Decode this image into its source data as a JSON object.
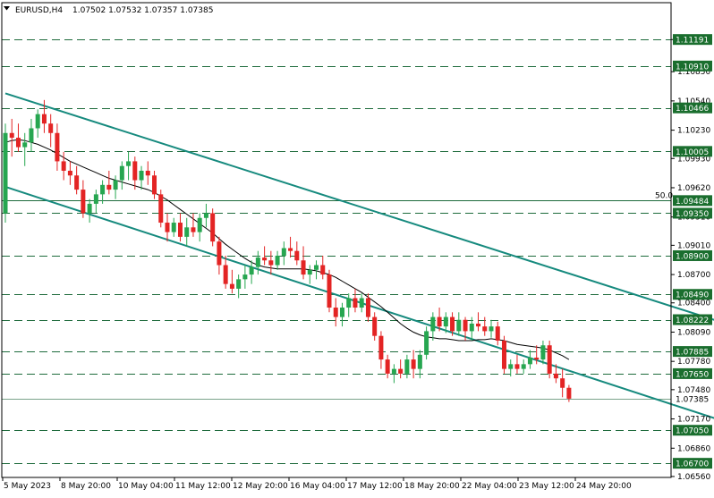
{
  "header": {
    "menu_icon": "triangle-down-icon",
    "symbol_tf": "EURUSD,H4",
    "ohlc": "1.07502 1.07532 1.07357 1.07385"
  },
  "colors": {
    "bull": "#26a650",
    "bear": "#e32424",
    "channel": "#168a7e",
    "level": "#1e6b3c",
    "ma": "#000000",
    "label_bg": "#1a6e2e",
    "label_text": "#ffffff"
  },
  "chart_data": {
    "type": "candlestick",
    "symbol": "EURUSD",
    "timeframe": "H4",
    "ylim": [
      1.0655,
      1.1142
    ],
    "price_ticks": [
      "1.11190",
      "1.10850",
      "1.10540",
      "1.10230",
      "1.09930",
      "1.09620",
      "1.09310",
      "1.09010",
      "1.08700",
      "1.08400",
      "1.08090",
      "1.07780",
      "1.07480",
      "1.07170",
      "1.06860",
      "1.06560"
    ],
    "time_labels": [
      "5 May 2023",
      "8 May 20:00",
      "10 May 04:00",
      "11 May 12:00",
      "12 May 20:00",
      "16 May 04:00",
      "17 May 12:00",
      "18 May 20:00",
      "22 May 04:00",
      "23 May 12:00",
      "24 May 20:00"
    ],
    "levels": [
      {
        "price": 1.11191,
        "label": "1.11191"
      },
      {
        "price": 1.1091,
        "label": "1.10910"
      },
      {
        "price": 1.10466,
        "label": "1.10466"
      },
      {
        "price": 1.10005,
        "label": "1.10005"
      },
      {
        "price": 1.09484,
        "label": "1.09484"
      },
      {
        "price": 1.0935,
        "label": "1.09350"
      },
      {
        "price": 1.089,
        "label": "1.08900"
      },
      {
        "price": 1.0849,
        "label": "1.08490"
      },
      {
        "price": 1.08222,
        "label": "1.08222"
      },
      {
        "price": 1.07885,
        "label": "1.07885"
      },
      {
        "price": 1.0765,
        "label": "1.07650"
      },
      {
        "price": 1.0705,
        "label": "1.07050"
      },
      {
        "price": 1.067,
        "label": "1.06700"
      }
    ],
    "fib_level": {
      "price": 1.09484,
      "text": "50.0"
    },
    "current_price": {
      "price": 1.07385,
      "label": "1.07385"
    },
    "channel": {
      "upper": [
        [
          0,
          1.1062
        ],
        [
          129,
          1.0779
        ]
      ],
      "lower": [
        [
          0,
          1.0963
        ],
        [
          129,
          1.0674
        ]
      ]
    },
    "candles": [
      [
        1.0935,
        1.103,
        1.0925,
        1.102
      ],
      [
        1.102,
        1.1035,
        1.0995,
        1.1015
      ],
      [
        1.1015,
        1.103,
        1.1,
        1.1005
      ],
      [
        1.1005,
        1.102,
        1.0985,
        1.101
      ],
      [
        1.101,
        1.1035,
        1.1,
        1.1025
      ],
      [
        1.1025,
        1.1045,
        1.1015,
        1.104
      ],
      [
        1.104,
        1.1055,
        1.102,
        1.103
      ],
      [
        1.103,
        1.104,
        1.1005,
        1.102
      ],
      [
        1.102,
        1.103,
        1.098,
        1.099
      ],
      [
        1.099,
        1.1,
        1.097,
        1.098
      ],
      [
        1.098,
        1.099,
        1.0965,
        1.0975
      ],
      [
        1.0975,
        1.0985,
        1.0955,
        1.096
      ],
      [
        1.096,
        1.097,
        1.093,
        1.0935
      ],
      [
        1.0935,
        1.095,
        1.0925,
        1.0945
      ],
      [
        1.0945,
        1.096,
        1.0935,
        1.0955
      ],
      [
        1.0955,
        1.097,
        1.0945,
        1.0965
      ],
      [
        1.0965,
        1.098,
        1.0955,
        1.096
      ],
      [
        1.096,
        1.0975,
        1.095,
        1.097
      ],
      [
        1.097,
        1.099,
        1.096,
        1.0985
      ],
      [
        1.0985,
        1.1,
        1.097,
        1.099
      ],
      [
        1.099,
        1.0995,
        1.096,
        1.097
      ],
      [
        1.097,
        1.0985,
        1.096,
        1.098
      ],
      [
        1.098,
        1.099,
        1.0965,
        1.0975
      ],
      [
        1.0975,
        1.098,
        1.095,
        1.0955
      ],
      [
        1.0955,
        1.096,
        1.092,
        1.0925
      ],
      [
        1.0925,
        1.0935,
        1.0905,
        1.0915
      ],
      [
        1.0915,
        1.093,
        1.091,
        1.0925
      ],
      [
        1.0925,
        1.0935,
        1.0905,
        1.091
      ],
      [
        1.091,
        1.093,
        1.09,
        1.092
      ],
      [
        1.092,
        1.0935,
        1.091,
        1.0915
      ],
      [
        1.0915,
        1.0935,
        1.0905,
        1.093
      ],
      [
        1.093,
        1.0945,
        1.092,
        1.0935
      ],
      [
        1.0935,
        1.094,
        1.09,
        1.0905
      ],
      [
        1.0905,
        1.091,
        1.087,
        1.088
      ],
      [
        1.088,
        1.089,
        1.0855,
        1.086
      ],
      [
        1.086,
        1.0875,
        1.085,
        1.0855
      ],
      [
        1.0855,
        1.087,
        1.0845,
        1.0865
      ],
      [
        1.0865,
        1.088,
        1.0855,
        1.087
      ],
      [
        1.087,
        1.0885,
        1.086,
        1.0878
      ],
      [
        1.0878,
        1.0895,
        1.087,
        1.0888
      ],
      [
        1.0888,
        1.09,
        1.088,
        1.0885
      ],
      [
        1.0885,
        1.0895,
        1.087,
        1.088
      ],
      [
        1.088,
        1.0895,
        1.0875,
        1.089
      ],
      [
        1.089,
        1.0905,
        1.088,
        1.0898
      ],
      [
        1.0898,
        1.091,
        1.0888,
        1.0895
      ],
      [
        1.0895,
        1.0905,
        1.088,
        1.0885
      ],
      [
        1.0885,
        1.09,
        1.0865,
        1.087
      ],
      [
        1.087,
        1.088,
        1.086,
        1.0875
      ],
      [
        1.0875,
        1.0885,
        1.0865,
        1.088
      ],
      [
        1.088,
        1.089,
        1.0865,
        1.087
      ],
      [
        1.087,
        1.0875,
        1.083,
        1.0835
      ],
      [
        1.0835,
        1.0845,
        1.0815,
        1.0825
      ],
      [
        1.0825,
        1.084,
        1.0815,
        1.0835
      ],
      [
        1.0835,
        1.085,
        1.0825,
        1.0845
      ],
      [
        1.0845,
        1.0855,
        1.083,
        1.0835
      ],
      [
        1.0835,
        1.085,
        1.083,
        1.0845
      ],
      [
        1.0845,
        1.085,
        1.082,
        1.0825
      ],
      [
        1.0825,
        1.083,
        1.08,
        1.0805
      ],
      [
        1.0805,
        1.081,
        1.077,
        1.078
      ],
      [
        1.078,
        1.0785,
        1.076,
        1.0765
      ],
      [
        1.0765,
        1.0775,
        1.0755,
        1.077
      ],
      [
        1.077,
        1.078,
        1.076,
        1.0765
      ],
      [
        1.0765,
        1.0785,
        1.076,
        1.078
      ],
      [
        1.078,
        1.079,
        1.076,
        1.077
      ],
      [
        1.077,
        1.079,
        1.076,
        1.0785
      ],
      [
        1.0785,
        1.0815,
        1.078,
        1.081
      ],
      [
        1.081,
        1.083,
        1.08,
        1.0825
      ],
      [
        1.0825,
        1.0835,
        1.081,
        1.0815
      ],
      [
        1.0815,
        1.083,
        1.0808,
        1.0825
      ],
      [
        1.0825,
        1.083,
        1.0805,
        1.081
      ],
      [
        1.081,
        1.083,
        1.0805,
        1.0822
      ],
      [
        1.0822,
        1.0825,
        1.08,
        1.081
      ],
      [
        1.081,
        1.0825,
        1.08,
        1.0818
      ],
      [
        1.0818,
        1.083,
        1.081,
        1.0815
      ],
      [
        1.0815,
        1.0825,
        1.0805,
        1.081
      ],
      [
        1.081,
        1.0822,
        1.0803,
        1.0815
      ],
      [
        1.0815,
        1.082,
        1.0795,
        1.08
      ],
      [
        1.08,
        1.0805,
        1.0765,
        1.077
      ],
      [
        1.077,
        1.078,
        1.0762,
        1.0775
      ],
      [
        1.0775,
        1.0785,
        1.0765,
        1.077
      ],
      [
        1.077,
        1.078,
        1.0765,
        1.0775
      ],
      [
        1.0775,
        1.079,
        1.077,
        1.0782
      ],
      [
        1.0782,
        1.0795,
        1.0775,
        1.078
      ],
      [
        1.078,
        1.08,
        1.0775,
        1.0795
      ],
      [
        1.0795,
        1.08,
        1.076,
        1.0765
      ],
      [
        1.0765,
        1.0775,
        1.0755,
        1.076
      ],
      [
        1.076,
        1.077,
        1.074,
        1.075
      ],
      [
        1.075,
        1.0753,
        1.0735,
        1.07385
      ]
    ],
    "ma": [
      1.101,
      1.1012,
      1.1013,
      1.1012,
      1.101,
      1.1008,
      1.1005,
      1.1002,
      1.0998,
      1.0994,
      1.099,
      1.0987,
      1.0984,
      1.0981,
      1.0978,
      1.0975,
      1.0972,
      1.097,
      1.0968,
      1.0966,
      1.0964,
      1.0962,
      1.096,
      1.0957,
      1.0953,
      1.0949,
      1.0944,
      1.0939,
      1.0934,
      1.0929,
      1.0924,
      1.0919,
      1.0914,
      1.0908,
      1.0902,
      1.0897,
      1.0892,
      1.0887,
      1.0883,
      1.088,
      1.0878,
      1.0877,
      1.0876,
      1.0876,
      1.0876,
      1.0876,
      1.0876,
      1.0875,
      1.0874,
      1.0872,
      1.087,
      1.0867,
      1.0863,
      1.0859,
      1.0855,
      1.0851,
      1.0846,
      1.0841,
      1.0836,
      1.083,
      1.0824,
      1.0818,
      1.0813,
      1.0809,
      1.0806,
      1.0804,
      1.0803,
      1.0802,
      1.0802,
      1.0801,
      1.08,
      1.08,
      1.08,
      1.0801,
      1.0801,
      1.0802,
      1.0801,
      1.08,
      1.0798,
      1.0796,
      1.0795,
      1.0794,
      1.0793,
      1.0792,
      1.079,
      1.0787,
      1.0784,
      1.078
    ]
  }
}
